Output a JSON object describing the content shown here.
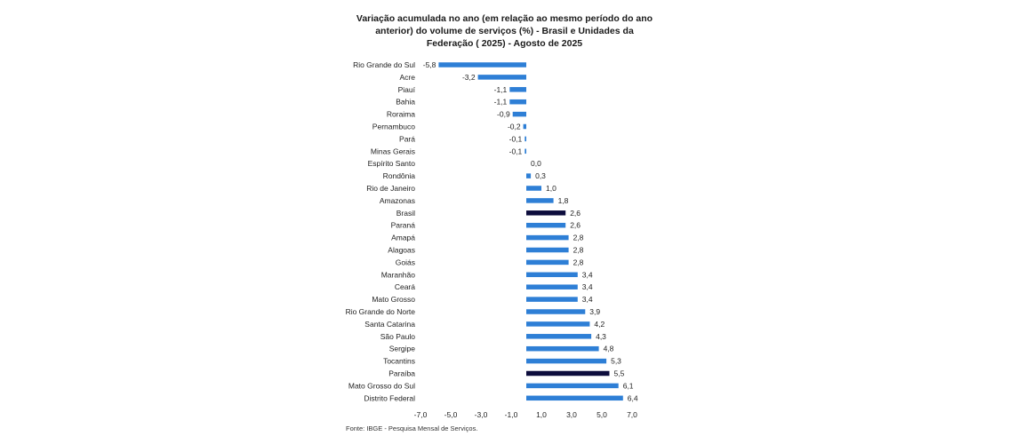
{
  "chart_data": {
    "type": "bar",
    "orientation": "horizontal",
    "title": "Variação acumulada no ano (em relação ao mesmo período do ano anterior) do volume de serviços (%)  - Brasil e Unidades da Federação ( 2025) - Agosto de 2025",
    "categories": [
      "Rio Grande do Sul",
      "Acre",
      "Piauí",
      "Bahia",
      "Roraima",
      "Pernambuco",
      "Pará",
      "Minas Gerais",
      "Espírito Santo",
      "Rondônia",
      "Rio de Janeiro",
      "Amazonas",
      "Brasil",
      "Paraná",
      "Amapá",
      "Alagoas",
      "Goiás",
      "Maranhão",
      "Ceará",
      "Mato Grosso",
      "Rio Grande do Norte",
      "Santa Catarina",
      "São Paulo",
      "Sergipe",
      "Tocantins",
      "Paraíba",
      "Mato Grosso do Sul",
      "Distrito Federal"
    ],
    "values": [
      -5.8,
      -3.2,
      -1.1,
      -1.1,
      -0.9,
      -0.2,
      -0.1,
      -0.1,
      0.0,
      0.3,
      1.0,
      1.8,
      2.6,
      2.6,
      2.8,
      2.8,
      2.8,
      3.4,
      3.4,
      3.4,
      3.9,
      4.2,
      4.3,
      4.8,
      5.3,
      5.5,
      6.1,
      6.4
    ],
    "value_labels": [
      "-5,8",
      "-3,2",
      "-1,1",
      "-1,1",
      "-0,9",
      "-0,2",
      "-0,1",
      "-0,1",
      "0,0",
      "0,3",
      "1,0",
      "1,8",
      "2,6",
      "2,6",
      "2,8",
      "2,8",
      "2,8",
      "3,4",
      "3,4",
      "3,4",
      "3,9",
      "4,2",
      "4,3",
      "4,8",
      "5,3",
      "5,5",
      "6,1",
      "6,4"
    ],
    "highlight": [
      "Brasil",
      "Paraíba"
    ],
    "xlim": [
      -7,
      7
    ],
    "xticks": [
      -7,
      -5,
      -3,
      -1,
      1,
      3,
      5,
      7
    ],
    "xtick_labels": [
      "-7,0",
      "-5,0",
      "-3,0",
      "-1,0",
      "1,0",
      "3,0",
      "5,0",
      "7,0"
    ],
    "colors": {
      "bar": "#2e7fd6",
      "highlight": "#0d0d3d",
      "text": "#222222"
    }
  },
  "source": "Fonte: IBGE - Pesquisa Mensal de Serviços."
}
